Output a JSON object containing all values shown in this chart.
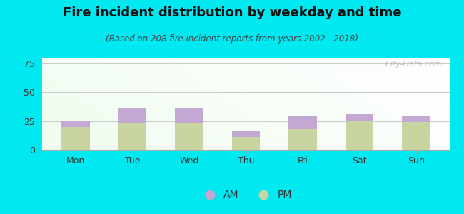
{
  "title": "Fire incident distribution by weekday and time",
  "subtitle": "(Based on 208 fire incident reports from years 2002 - 2018)",
  "categories": [
    "Mon",
    "Tue",
    "Wed",
    "Thu",
    "Fri",
    "Sat",
    "Sun"
  ],
  "pm_values": [
    20,
    23,
    23,
    11,
    18,
    25,
    24
  ],
  "am_values": [
    5,
    13,
    13,
    5,
    12,
    6,
    5
  ],
  "am_color": "#c4a8d4",
  "pm_color": "#c8d5a0",
  "background_outer": "#00e8f0",
  "ylim": [
    0,
    80
  ],
  "yticks": [
    0,
    25,
    50,
    75
  ],
  "watermark": "City-Data.com",
  "title_fontsize": 13,
  "subtitle_fontsize": 8.5,
  "tick_fontsize": 9,
  "legend_fontsize": 10,
  "bar_width": 0.5
}
